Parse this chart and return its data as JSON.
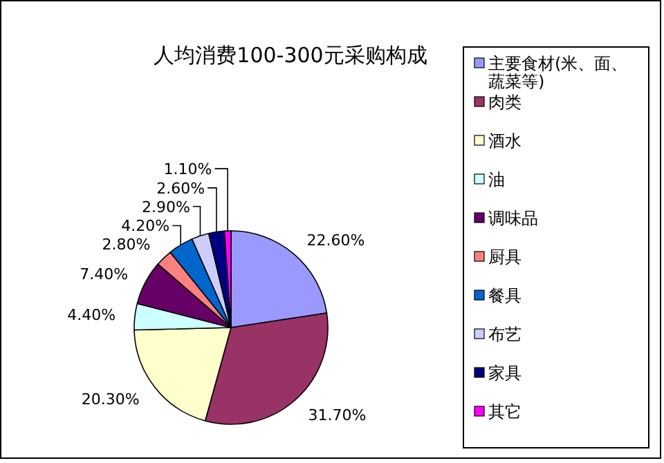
{
  "chart_data": {
    "type": "pie",
    "title": "人均消费100-300元采购构成",
    "categories": [
      "主要食材(米、面、蔬菜等)",
      "肉类",
      "酒水",
      "油",
      "调味品",
      "厨具",
      "餐具",
      "布艺",
      "家具",
      "其它"
    ],
    "values": [
      22.6,
      31.7,
      20.3,
      4.4,
      7.4,
      2.8,
      4.2,
      2.9,
      2.6,
      1.1
    ],
    "colors": [
      "#9999ff",
      "#993366",
      "#ffffcc",
      "#ccffff",
      "#660066",
      "#ff8080",
      "#0066cc",
      "#ccccff",
      "#000080",
      "#ff00ff"
    ],
    "value_labels": [
      "22.60%",
      "31.70%",
      "20.30%",
      "4.40%",
      "7.40%",
      "2.80%",
      "4.20%",
      "2.90%",
      "2.60%",
      "1.10%"
    ],
    "legend": "right"
  }
}
